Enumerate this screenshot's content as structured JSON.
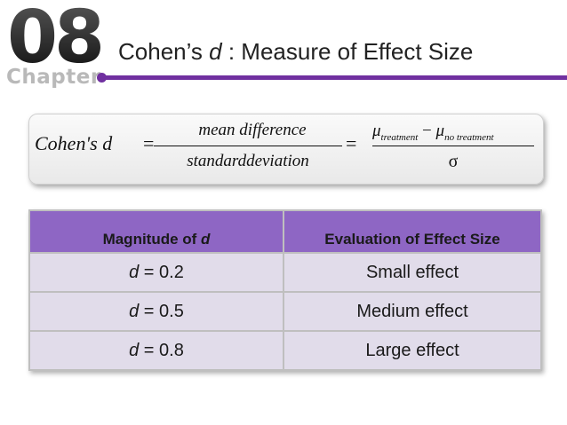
{
  "header": {
    "chapter_number": "08",
    "chapter_word": "Chapter",
    "title_prefix": "Cohen’s ",
    "title_symbol": "d",
    "title_suffix": " : Measure of Effect Size",
    "accent_color": "#7030a0"
  },
  "formula": {
    "lhs": "Cohen's d",
    "equals": "=",
    "fraction1_numerator": "mean difference",
    "fraction1_denominator": "standarddeviation",
    "mu_symbol": "μ",
    "subscript_treatment": "treatment",
    "minus": "−",
    "subscript_no_treatment": "no treatment",
    "fraction2_denominator": "σ"
  },
  "table": {
    "header_fill": "#8e66c4",
    "row_fill": "#e1dcea",
    "col1_header_prefix": "Magnitude of ",
    "col1_header_symbol": "d",
    "col2_header": "Evaluation of Effect Size",
    "rows": [
      {
        "symbol": "d",
        "value": " = 0.2",
        "evaluation": "Small effect"
      },
      {
        "symbol": "d",
        "value": " = 0.5",
        "evaluation": "Medium effect"
      },
      {
        "symbol": "d",
        "value": " = 0.8",
        "evaluation": "Large effect"
      }
    ]
  }
}
